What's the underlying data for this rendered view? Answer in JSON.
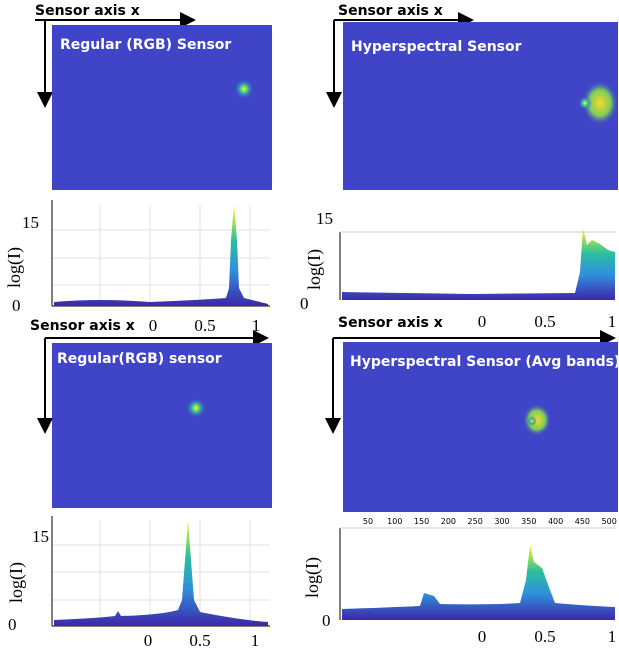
{
  "panels": [
    {
      "axis_label": "Sensor axis x",
      "title": "Regular (RGB) Sensor"
    },
    {
      "axis_label": "Sensor axis x",
      "title": "Hyperspectral Sensor"
    },
    {
      "title": "Regular(RGB) sensor"
    },
    {
      "title": "Hyperspectral Sensor (Avg bands)",
      "x_ticks": [
        "50",
        "100",
        "150",
        "200",
        "250",
        "300",
        "350",
        "400",
        "450",
        "500"
      ]
    }
  ],
  "plots": [
    {
      "y_label": "log(I)",
      "y_ticks": [
        "15",
        "0"
      ],
      "x_label": "Sensor axis x",
      "x_ticks": [
        "0",
        "0.5",
        "1"
      ]
    },
    {
      "y_label": "log(I)",
      "y_ticks": [
        "15",
        "0"
      ],
      "x_label": "Sensor axis x",
      "x_ticks": [
        "0",
        "0.5",
        "1"
      ]
    },
    {
      "y_label": "log(I)",
      "y_ticks": [
        "15",
        "0"
      ],
      "x_ticks": [
        "0",
        "0.5",
        "1"
      ]
    },
    {
      "y_label": "log(I)",
      "y_ticks": [
        "0"
      ],
      "x_ticks": [
        "0",
        "0.5",
        "1"
      ]
    }
  ]
}
